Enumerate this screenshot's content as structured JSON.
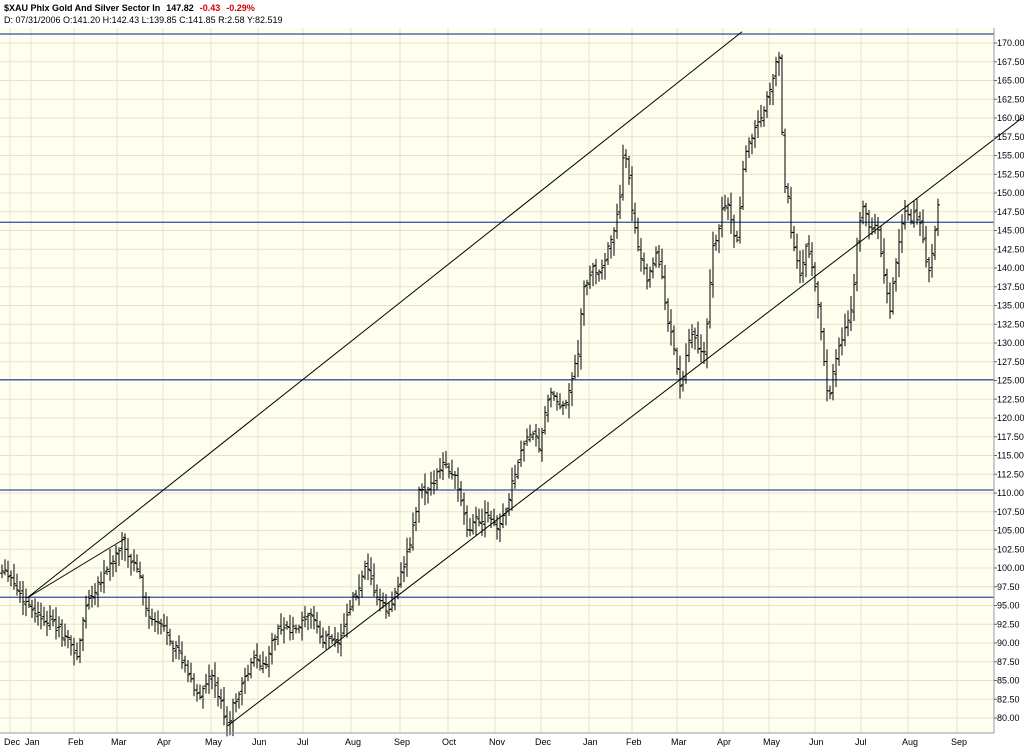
{
  "header": {
    "symbol_name": "$XAU Phlx Gold And Silver Sector In",
    "last": "147.82",
    "change": "-0.43",
    "change_pct": "-0.29%",
    "ohlc_line": "D: 07/31/2006 O:141.20 H:142.43 L:139.85 C:141.85 R:2.58 Y:82.519"
  },
  "colors": {
    "background": "#fffff0",
    "grid": "#e4e4cc",
    "bars": "#000000",
    "hlines": "#2f4f9f",
    "trendlines": "#000000",
    "negative": "#d40000"
  },
  "chart_data": {
    "type": "ohlc_bar",
    "ylim": [
      78,
      172
    ],
    "y_ticks": [
      "80.00",
      "82.50",
      "85.00",
      "87.50",
      "90.00",
      "92.50",
      "95.00",
      "97.50",
      "100.00",
      "102.50",
      "105.00",
      "107.50",
      "110.00",
      "112.50",
      "115.00",
      "117.50",
      "120.00",
      "122.50",
      "125.00",
      "127.50",
      "130.00",
      "132.50",
      "135.00",
      "137.50",
      "140.00",
      "142.50",
      "145.00",
      "147.50",
      "150.00",
      "152.50",
      "155.00",
      "157.50",
      "160.00",
      "162.50",
      "165.00",
      "167.50",
      "170.00"
    ],
    "x_labels": [
      "Dec",
      "Jan",
      "Feb",
      "Mar",
      "Apr",
      "May",
      "Jun",
      "Jul",
      "Aug",
      "Sep",
      "Oct",
      "Nov",
      "Dec",
      "Jan",
      "Feb",
      "Mar",
      "Apr",
      "May",
      "Jun",
      "Jul",
      "Aug",
      "Sep"
    ],
    "price_path": [
      [
        0,
        99.5
      ],
      [
        5,
        100
      ],
      [
        10,
        99
      ],
      [
        16,
        97.5
      ],
      [
        22,
        96
      ],
      [
        30,
        95
      ],
      [
        40,
        93.5
      ],
      [
        50,
        93
      ],
      [
        60,
        91.5
      ],
      [
        70,
        90
      ],
      [
        78,
        88
      ],
      [
        85,
        95
      ],
      [
        92,
        96.5
      ],
      [
        98,
        98
      ],
      [
        105,
        99.5
      ],
      [
        112,
        101
      ],
      [
        118,
        102
      ],
      [
        123,
        103.5
      ],
      [
        128,
        101.5
      ],
      [
        134,
        100.5
      ],
      [
        138,
        100
      ],
      [
        143,
        96
      ],
      [
        150,
        93
      ],
      [
        158,
        92.5
      ],
      [
        166,
        92
      ],
      [
        172,
        90
      ],
      [
        178,
        89
      ],
      [
        183,
        87
      ],
      [
        188,
        86
      ],
      [
        194,
        84
      ],
      [
        200,
        83
      ],
      [
        206,
        84.5
      ],
      [
        212,
        85.5
      ],
      [
        218,
        83
      ],
      [
        224,
        80.5
      ],
      [
        228,
        79
      ],
      [
        234,
        82
      ],
      [
        240,
        84
      ],
      [
        246,
        85.5
      ],
      [
        252,
        87.5
      ],
      [
        258,
        88
      ],
      [
        264,
        86.5
      ],
      [
        270,
        89.5
      ],
      [
        276,
        91
      ],
      [
        282,
        92.5
      ],
      [
        290,
        91.5
      ],
      [
        298,
        92
      ],
      [
        306,
        93
      ],
      [
        314,
        93.5
      ],
      [
        322,
        90
      ],
      [
        330,
        91
      ],
      [
        336,
        90
      ],
      [
        342,
        91.5
      ],
      [
        350,
        95
      ],
      [
        358,
        97
      ],
      [
        366,
        100
      ],
      [
        374,
        97
      ],
      [
        382,
        95
      ],
      [
        390,
        94
      ],
      [
        396,
        97.5
      ],
      [
        402,
        99.5
      ],
      [
        408,
        102
      ],
      [
        414,
        106
      ],
      [
        420,
        111
      ],
      [
        426,
        109.5
      ],
      [
        432,
        111
      ],
      [
        438,
        113.5
      ],
      [
        444,
        114
      ],
      [
        450,
        113
      ],
      [
        456,
        112
      ],
      [
        462,
        108
      ],
      [
        468,
        104
      ],
      [
        474,
        107
      ],
      [
        480,
        106
      ],
      [
        486,
        108
      ],
      [
        492,
        106.5
      ],
      [
        498,
        105.5
      ],
      [
        504,
        107
      ],
      [
        510,
        110
      ],
      [
        516,
        113.5
      ],
      [
        522,
        116
      ],
      [
        528,
        118
      ],
      [
        534,
        117.5
      ],
      [
        540,
        116
      ],
      [
        546,
        121
      ],
      [
        550,
        124
      ],
      [
        554,
        122.5
      ],
      [
        560,
        121
      ],
      [
        566,
        122.5
      ],
      [
        572,
        125.5
      ],
      [
        578,
        128
      ],
      [
        582,
        136.5
      ],
      [
        588,
        138
      ],
      [
        592,
        140
      ],
      [
        598,
        139.5
      ],
      [
        604,
        141
      ],
      [
        610,
        143
      ],
      [
        616,
        146.5
      ],
      [
        620,
        150
      ],
      [
        624,
        155.5
      ],
      [
        628,
        152.5
      ],
      [
        634,
        146
      ],
      [
        640,
        142
      ],
      [
        646,
        138.5
      ],
      [
        652,
        140.5
      ],
      [
        656,
        142
      ],
      [
        662,
        138.5
      ],
      [
        668,
        133
      ],
      [
        674,
        129
      ],
      [
        680,
        124.5
      ],
      [
        684,
        125.5
      ],
      [
        688,
        130
      ],
      [
        694,
        131
      ],
      [
        700,
        128
      ],
      [
        706,
        130
      ],
      [
        712,
        142
      ],
      [
        716,
        144
      ],
      [
        720,
        146
      ],
      [
        724,
        149
      ],
      [
        728,
        148
      ],
      [
        732,
        146
      ],
      [
        736,
        143
      ],
      [
        740,
        148
      ],
      [
        744,
        155
      ],
      [
        750,
        157
      ],
      [
        756,
        159
      ],
      [
        762,
        160.5
      ],
      [
        768,
        163
      ],
      [
        772,
        165
      ],
      [
        776,
        168
      ],
      [
        778,
        171
      ],
      [
        781,
        160.5
      ],
      [
        784,
        152
      ],
      [
        788,
        149
      ],
      [
        792,
        144
      ],
      [
        796,
        141
      ],
      [
        800,
        139
      ],
      [
        806,
        143
      ],
      [
        812,
        140
      ],
      [
        816,
        137
      ],
      [
        820,
        133
      ],
      [
        824,
        128
      ],
      [
        828,
        122
      ],
      [
        832,
        125.5
      ],
      [
        836,
        128
      ],
      [
        840,
        130
      ],
      [
        846,
        132
      ],
      [
        850,
        134
      ],
      [
        854,
        138
      ],
      [
        858,
        145
      ],
      [
        862,
        148
      ],
      [
        866,
        147.5
      ],
      [
        870,
        144
      ],
      [
        874,
        146
      ],
      [
        878,
        145
      ],
      [
        882,
        140.5
      ],
      [
        886,
        137
      ],
      [
        890,
        134
      ],
      [
        894,
        139
      ],
      [
        898,
        143
      ],
      [
        902,
        146.5
      ],
      [
        906,
        147.5
      ],
      [
        910,
        146
      ],
      [
        914,
        147
      ],
      [
        918,
        146.5
      ],
      [
        922,
        145
      ],
      [
        926,
        141
      ],
      [
        930,
        139.5
      ],
      [
        934,
        144
      ],
      [
        938,
        147.82
      ]
    ],
    "horizontal_lines": [
      171.2,
      146.1,
      125.1,
      110.4,
      96.1
    ],
    "trendlines": [
      {
        "from": [
          27,
          96
        ],
        "to": [
          742,
          171.5
        ]
      },
      {
        "from": [
          27,
          96
        ],
        "to": [
          126,
          104
        ]
      },
      {
        "from": [
          228,
          79
        ],
        "to": [
          1022,
          160
        ]
      }
    ]
  }
}
